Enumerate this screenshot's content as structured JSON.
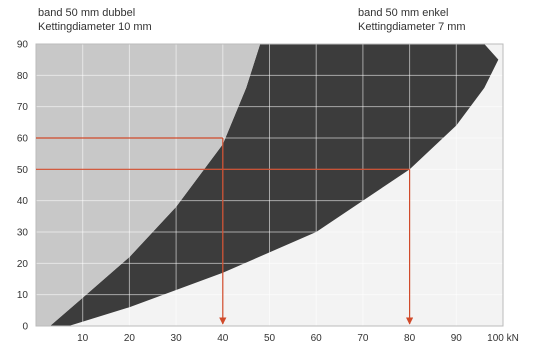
{
  "legend": {
    "left": {
      "line1": "band 50 mm dubbel",
      "line2": "Kettingdiameter 10 mm"
    },
    "right": {
      "line1": "band 50 mm enkel",
      "line2": "Kettingdiameter 7 mm"
    }
  },
  "chart_data": {
    "type": "area",
    "x_ticks": [
      "10",
      "20",
      "30",
      "40",
      "50",
      "60",
      "70",
      "80",
      "90",
      "100 kN"
    ],
    "y_ticks": [
      "0",
      "10",
      "20",
      "30",
      "40",
      "50",
      "60",
      "70",
      "80",
      "90"
    ],
    "xlim": [
      0,
      100
    ],
    "ylim": [
      0,
      90
    ],
    "grid": true,
    "series": [
      {
        "name": "band 50 mm dubbel, Kettingdiameter 10 mm",
        "x": [
          3,
          10,
          20,
          30,
          40,
          45,
          48
        ],
        "y": [
          0,
          9,
          22,
          38,
          58,
          76,
          90
        ],
        "color": "#c8c8c8"
      },
      {
        "name": "band 50 mm enkel, Kettingdiameter 7 mm",
        "x": [
          7,
          20,
          40,
          60,
          80,
          90,
          96,
          99,
          96
        ],
        "y": [
          0,
          6,
          17,
          30,
          50,
          64,
          76,
          85,
          90
        ],
        "color": "#3c3c3c"
      }
    ],
    "reference_lines": [
      {
        "y": 60,
        "x_end": 40
      },
      {
        "y": 50,
        "x_end": 80
      }
    ]
  }
}
